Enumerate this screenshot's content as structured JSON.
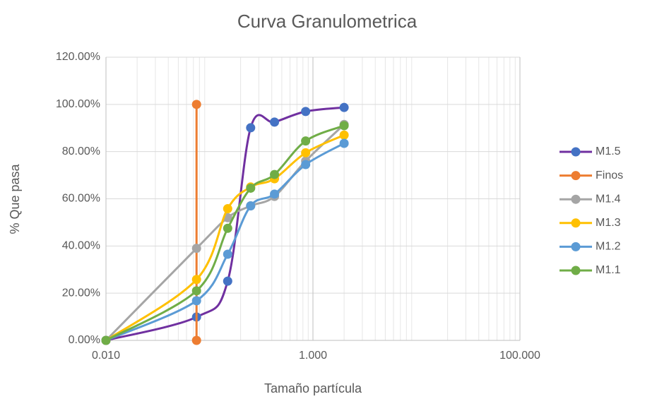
{
  "chart_data": {
    "type": "scatter_smooth",
    "title": "Curva Granulometrica",
    "x_label": "Tamaño partícula",
    "y_label": "% Que pasa",
    "xscale": "log",
    "xlim": [
      0.01,
      100
    ],
    "xticks": [
      {
        "value": 0.01,
        "label": "0.010"
      },
      {
        "value": 1,
        "label": "1.000"
      },
      {
        "value": 100,
        "label": "100.000"
      }
    ],
    "ylim": [
      0,
      120
    ],
    "yticks": [
      {
        "value": 0,
        "label": "0.00%"
      },
      {
        "value": 20,
        "label": "20.00%"
      },
      {
        "value": 40,
        "label": "40.00%"
      },
      {
        "value": 60,
        "label": "60.00%"
      },
      {
        "value": 80,
        "label": "80.00%"
      },
      {
        "value": 100,
        "label": "100.00%"
      },
      {
        "value": 120,
        "label": "120.00%"
      }
    ],
    "grid": true,
    "minor_grid": true,
    "legend": "right",
    "series": [
      {
        "name": "M1.5",
        "color": "#7030a0",
        "marker_color": "#4472c4",
        "x": [
          0.01,
          0.075,
          0.15,
          0.25,
          0.425,
          0.85,
          2.0
        ],
        "values": [
          0,
          9.9,
          25.1,
          90.1,
          92.5,
          97,
          98.7
        ]
      },
      {
        "name": "Finos",
        "color": "#ed7d31",
        "marker_color": "#ed7d31",
        "x": [
          0.075,
          0.075
        ],
        "values": [
          100,
          0
        ]
      },
      {
        "name": "M1.4",
        "color": "#a5a5a5",
        "marker_color": "#a5a5a5",
        "x": [
          0.01,
          0.075,
          0.15,
          0.25,
          0.425,
          0.85,
          2.0
        ],
        "values": [
          0,
          39,
          52,
          57,
          61,
          76,
          91.5
        ]
      },
      {
        "name": "M1.3",
        "color": "#ffc000",
        "marker_color": "#ffc000",
        "x": [
          0.01,
          0.075,
          0.15,
          0.25,
          0.425,
          0.85,
          2.0
        ],
        "values": [
          0,
          25.8,
          55.8,
          65,
          68.5,
          79.5,
          87
        ]
      },
      {
        "name": "M1.2",
        "color": "#5b9bd5",
        "marker_color": "#5b9bd5",
        "x": [
          0.01,
          0.075,
          0.15,
          0.25,
          0.425,
          0.85,
          2.0
        ],
        "values": [
          0,
          16.8,
          36.5,
          57,
          62,
          74.5,
          83.5
        ]
      },
      {
        "name": "M1.1",
        "color": "#70ad47",
        "marker_color": "#70ad47",
        "x": [
          0.01,
          0.075,
          0.15,
          0.25,
          0.425,
          0.85,
          2.0
        ],
        "values": [
          0,
          21,
          47.5,
          64.5,
          70.3,
          84.5,
          91
        ]
      }
    ]
  }
}
